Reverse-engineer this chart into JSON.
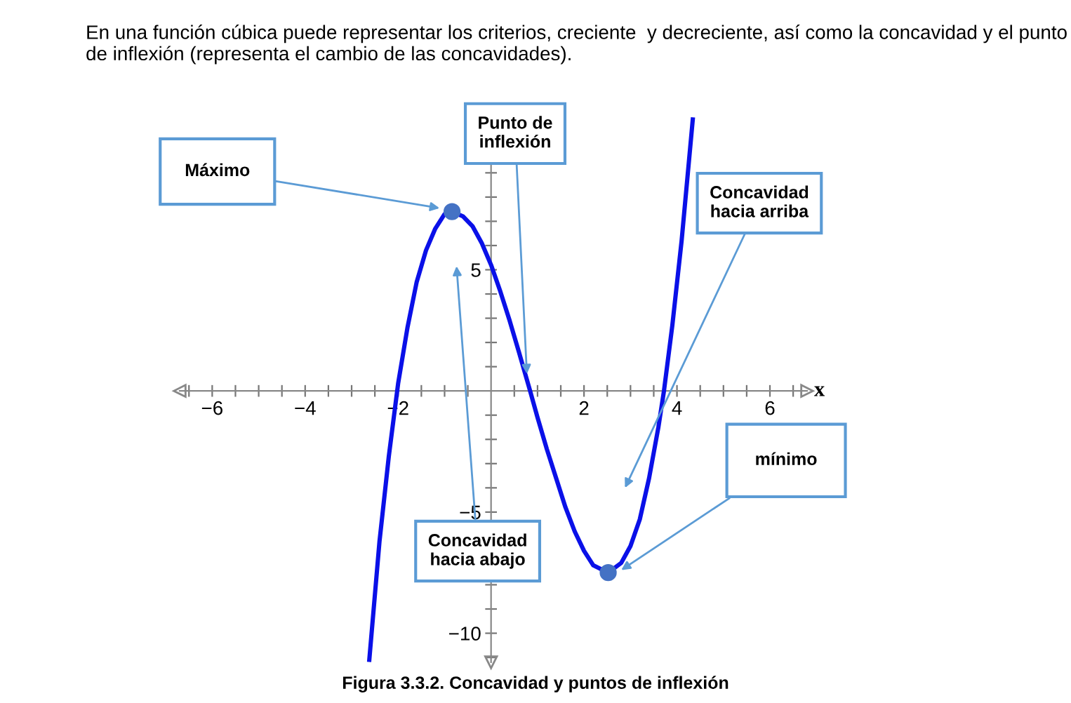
{
  "chart_data": {
    "type": "line",
    "title": "En una función cúbica puede representar los criterios, creciente  y decreciente, así como la concavidad y el punto de inflexión (representa el cambio de las concavidades).",
    "xlabel": "x",
    "x": [
      -2.62,
      -2.4,
      -2.2,
      -2.0,
      -1.8,
      -1.6,
      -1.4,
      -1.2,
      -1.0,
      -0.84,
      -0.6,
      -0.4,
      -0.2,
      0.0,
      0.2,
      0.4,
      0.6,
      0.84,
      1.0,
      1.2,
      1.4,
      1.6,
      1.8,
      2.0,
      2.2,
      2.52,
      2.8,
      3.0,
      3.2,
      3.4,
      3.6,
      3.72,
      3.9,
      4.1,
      4.34
    ],
    "series": [
      {
        "color": "#0a10e8",
        "marker": "none",
        "line_style": "solid",
        "values": [
          -11.1,
          -6.2,
          -2.7,
          0.3,
          2.6,
          4.5,
          5.8,
          6.7,
          7.3,
          7.4,
          7.2,
          6.8,
          6.1,
          5.2,
          4.1,
          2.9,
          1.6,
          0.0,
          -1.1,
          -2.4,
          -3.6,
          -4.8,
          -5.8,
          -6.6,
          -7.2,
          -7.5,
          -7.1,
          -6.4,
          -5.3,
          -3.6,
          -1.5,
          0.0,
          2.7,
          6.2,
          11.2
        ]
      },
      {
        "type": "scatter",
        "color": "#4472c4",
        "marker": "circle",
        "x": [
          -0.84,
          2.52
        ],
        "values": [
          7.4,
          -7.5
        ]
      }
    ],
    "xlim": [
      -6.7,
      6.8
    ],
    "ylim": [
      -11.2,
      11.5
    ],
    "xticks": [
      {
        "value": -6.5,
        "label": null
      },
      -6,
      {
        "value": -5.5,
        "label": null
      },
      {
        "value": -5,
        "label": null
      },
      {
        "value": -4.5,
        "label": null
      },
      -4,
      {
        "value": -3.5,
        "label": null
      },
      {
        "value": -3,
        "label": null
      },
      {
        "value": -2.5,
        "label": null
      },
      -2,
      {
        "value": -1.5,
        "label": null
      },
      {
        "value": -1,
        "label": null
      },
      {
        "value": -0.5,
        "label": null
      },
      {
        "value": 0.5,
        "label": null
      },
      {
        "value": 1,
        "label": null
      },
      {
        "value": 1.5,
        "label": null
      },
      2,
      {
        "value": 2.5,
        "label": null
      },
      {
        "value": 3,
        "label": null
      },
      {
        "value": 3.5,
        "label": null
      },
      4,
      {
        "value": 4.5,
        "label": null
      },
      {
        "value": 5,
        "label": null
      },
      {
        "value": 5.5,
        "label": null
      },
      6,
      {
        "value": 6.5,
        "label": null
      }
    ],
    "yticks": [
      {
        "value": -11,
        "label": null
      },
      -10,
      {
        "value": -9,
        "label": null
      },
      {
        "value": -8,
        "label": null
      },
      {
        "value": -7,
        "label": null
      },
      {
        "value": -6,
        "label": null
      },
      -5,
      {
        "value": -4,
        "label": null
      },
      {
        "value": -3,
        "label": null
      },
      {
        "value": -2,
        "label": null
      },
      {
        "value": -1,
        "label": null
      },
      {
        "value": 1,
        "label": null
      },
      {
        "value": 2,
        "label": null
      },
      {
        "value": 3,
        "label": null
      },
      {
        "value": 4,
        "label": null
      },
      5,
      {
        "value": 6,
        "label": null
      },
      {
        "value": 7,
        "label": null
      },
      {
        "value": 8,
        "label": null
      },
      {
        "value": 9,
        "label": null
      },
      {
        "value": 10,
        "label": null
      },
      {
        "value": 11,
        "label": null
      }
    ],
    "grid": false,
    "legend": false,
    "annotations": [
      "Máximo",
      {
        "text": "Punto de\ninflexión",
        "x": 0.77,
        "y": 0.7
      },
      "Concavidad\nhacia arriba",
      "mínimo",
      "Concavidad\nhacia abajo",
      "Figura 3.3.2. Concavidad y puntos de inflexión"
    ]
  }
}
